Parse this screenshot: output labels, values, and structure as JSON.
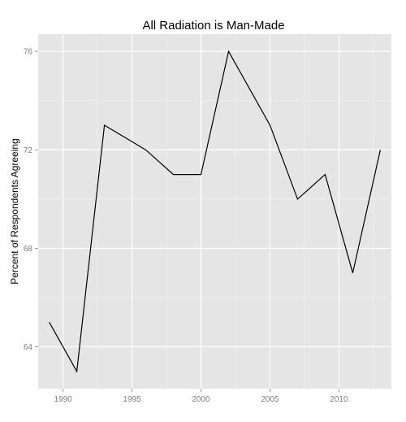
{
  "chart_data": {
    "type": "line",
    "title": "All Radiation is Man-Made",
    "xlabel": "",
    "ylabel": "Percent of Respondents Agreeing",
    "xlim": [
      1988.2,
      2013.8
    ],
    "ylim": [
      62.3,
      76.7
    ],
    "x_ticks": [
      1990,
      1995,
      2000,
      2005,
      2010
    ],
    "x_tick_labels": [
      "1990",
      "1995",
      "2000",
      "2005",
      "2010"
    ],
    "y_ticks": [
      64,
      68,
      72,
      76
    ],
    "y_tick_labels": [
      "64",
      "68",
      "72",
      "76"
    ],
    "grid": true,
    "legend": "none",
    "background_color": "#e5e5e5",
    "line_color": "#000000",
    "series": [
      {
        "x": [
          1989,
          1991,
          1993,
          1996,
          1998,
          2000,
          2002,
          2005,
          2007,
          2009,
          2011,
          2013
        ],
        "y": [
          65,
          63,
          73,
          72,
          71,
          71,
          76,
          73,
          70,
          71,
          67,
          72
        ]
      }
    ]
  }
}
